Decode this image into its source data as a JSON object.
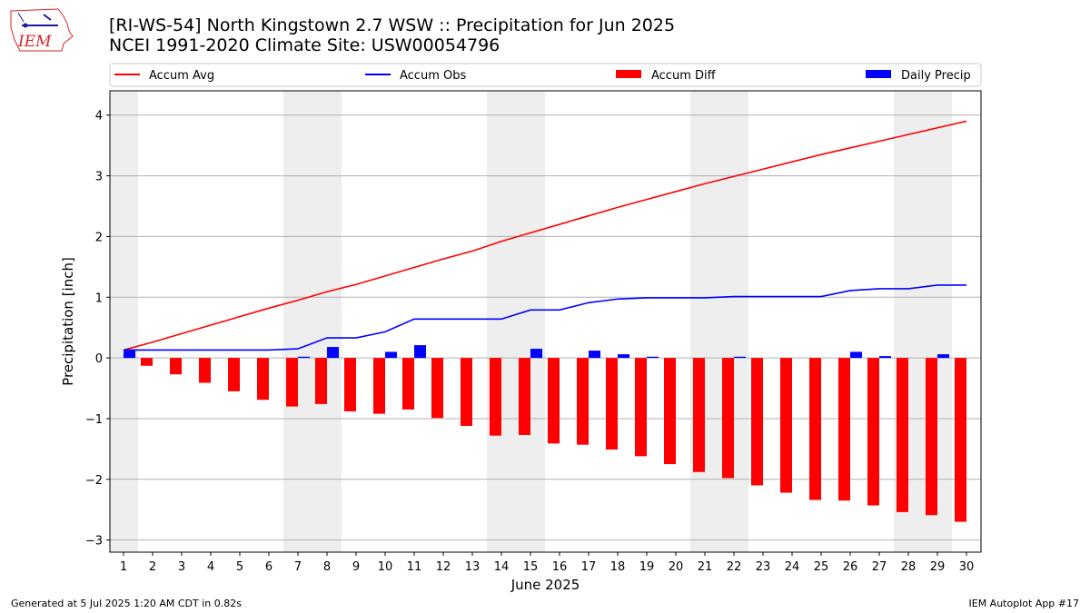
{
  "header": {
    "title": "[RI-WS-54] North Kingstown 2.7 WSW :: Precipitation for Jun 2025",
    "subtitle": "NCEI 1991-2020 Climate Site: USW00054796",
    "logo_text": "IEM"
  },
  "footer": {
    "generated": "Generated at 5 Jul 2025 1:20 AM CDT in 0.82s",
    "app": "IEM Autoplot App #17"
  },
  "colors": {
    "avg": "#ff0000",
    "obs": "#0000ff",
    "diff": "#ff0000",
    "daily": "#0000ff",
    "weekend_band": "#eeeeee",
    "grid": "#b0b0b0"
  },
  "chart_data": {
    "type": "bar",
    "xlabel": "June 2025",
    "ylabel": "Precipitation [inch]",
    "ylim": [
      -3.2,
      4.4
    ],
    "yticks": [
      -3,
      -2,
      -1,
      0,
      1,
      2,
      3,
      4
    ],
    "ytick_labels": [
      "−3",
      "−2",
      "−1",
      "0",
      "1",
      "2",
      "3",
      "4"
    ],
    "grid": "horizontal",
    "legend_placement": "top",
    "x": [
      1,
      2,
      3,
      4,
      5,
      6,
      7,
      8,
      9,
      10,
      11,
      12,
      13,
      14,
      15,
      16,
      17,
      18,
      19,
      20,
      21,
      22,
      23,
      24,
      25,
      26,
      27,
      28,
      29,
      30
    ],
    "weekend_days": [
      1,
      7,
      8,
      14,
      15,
      21,
      22,
      28,
      29
    ],
    "series": [
      {
        "name": "Accum Avg",
        "kind": "line",
        "values": [
          0.13,
          0.26,
          0.4,
          0.54,
          0.68,
          0.82,
          0.95,
          1.09,
          1.21,
          1.35,
          1.49,
          1.63,
          1.76,
          1.92,
          2.06,
          2.2,
          2.34,
          2.48,
          2.61,
          2.74,
          2.87,
          2.99,
          3.11,
          3.23,
          3.35,
          3.46,
          3.57,
          3.68,
          3.79,
          3.9
        ]
      },
      {
        "name": "Accum Obs",
        "kind": "line",
        "values": [
          0.13,
          0.13,
          0.13,
          0.13,
          0.13,
          0.13,
          0.15,
          0.33,
          0.33,
          0.43,
          0.64,
          0.64,
          0.64,
          0.64,
          0.79,
          0.79,
          0.91,
          0.97,
          0.99,
          0.99,
          0.99,
          1.01,
          1.01,
          1.01,
          1.01,
          1.11,
          1.14,
          1.14,
          1.2,
          1.2
        ]
      },
      {
        "name": "Accum Diff",
        "kind": "bar",
        "values": [
          0.0,
          -0.13,
          -0.27,
          -0.41,
          -0.55,
          -0.69,
          -0.8,
          -0.76,
          -0.88,
          -0.92,
          -0.85,
          -0.99,
          -1.12,
          -1.28,
          -1.27,
          -1.41,
          -1.43,
          -1.51,
          -1.62,
          -1.75,
          -1.88,
          -1.98,
          -2.1,
          -2.22,
          -2.34,
          -2.35,
          -2.43,
          -2.54,
          -2.59,
          -2.7
        ]
      },
      {
        "name": "Daily Precip",
        "kind": "bar",
        "values": [
          0.13,
          0.0,
          0.0,
          0.0,
          0.0,
          0.0,
          0.02,
          0.18,
          0.0,
          0.1,
          0.21,
          0.0,
          0.0,
          0.0,
          0.15,
          0.0,
          0.12,
          0.06,
          0.02,
          0.0,
          0.0,
          0.02,
          0.0,
          0.0,
          0.0,
          0.1,
          0.03,
          0.0,
          0.06,
          0.0
        ]
      }
    ]
  }
}
